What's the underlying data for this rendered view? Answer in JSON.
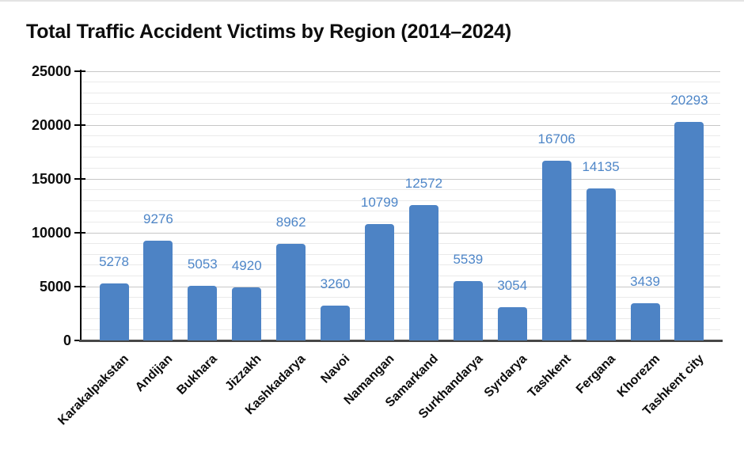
{
  "chart_data": {
    "type": "bar",
    "title": "Total Traffic Accident Victims by Region (2014–2024)",
    "categories": [
      "Karakalpakstan",
      "Andijan",
      "Bukhara",
      "Jizzakh",
      "Kashkadarya",
      "Navoi",
      "Namangan",
      "Samarkand",
      "Surkhandarya",
      "Syrdarya",
      "Tashkent",
      "Fergana",
      "Khorezm",
      "Tashkent city"
    ],
    "values": [
      5278,
      9276,
      5053,
      4920,
      8962,
      3260,
      10799,
      12572,
      5539,
      3054,
      16706,
      14135,
      3439,
      20293
    ],
    "xlabel": "",
    "ylabel": "",
    "ylim": [
      0,
      25000
    ],
    "ytick_step": 5000,
    "ytick_labels": [
      "0",
      "5000",
      "10000",
      "15000",
      "20000",
      "25000"
    ],
    "grid_minor_step": 1000,
    "grid": "on",
    "legend_position": "none",
    "data_labels": true,
    "bar_color": "#4d83c5",
    "value_label_color": "#4e86c8",
    "axis_text_color": "#0d0d0d"
  }
}
